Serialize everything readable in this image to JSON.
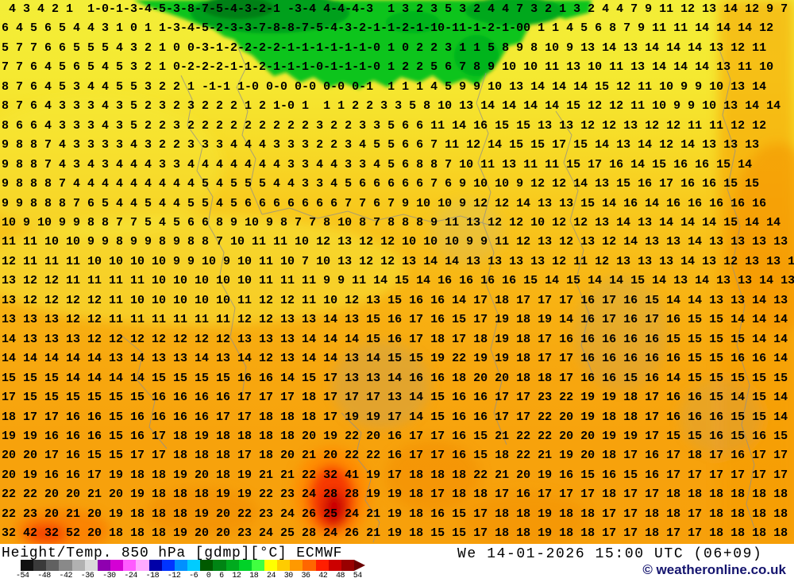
{
  "map": {
    "rows": [
      " 4 3 4 2 1  1-0-1-3-4-5-3-8-7-5-4-3-2-1 -3-4 4-4-4-3  1 3 2 3 5 3 2 4 4 7 3 2 1 3 2 4 4 7 9 11 12 13 14 12 9 7",
      "6 4 5 6 5 4 4 3 1 0 1 1-3-4-5-2-3-3-7-8-8-7-5-4-3-2-1-1-2-1-10-11-1-2-1-00 1 1 4 5 6 8 7 9 11 11 14 14 14 12",
      "5 7 7 6 6 5 5 5 4 3 2 1 0 0-3-1-2-2-2-2-1-1-1-1-1-1-0 1 0 2 2 3 1 1 5 8 9 8 10 9 13 14 13 14 14 14 13 12 11",
      "7 7 6 4 5 6 5 4 5 3 2 1 0-2-2-2-1-1-2-1-1-1-0-1-1-1-0 1 2 2 5 6 7 8 9 10 10 11 13 10 11 13 14 14 14 13 11 10",
      "8 7 6 4 5 3 4 4 5 5 3 2 2 1 -1-1 1-0 0-0 0-0 0-0 0-1  1 1 1 4 5 9 9 10 13 14 14 14 15 12 11 10 9 9 10 13 14",
      "8 7 6 4 3 3 3 4 3 5 2 3 2 3 2 2 2 1 2 1-0 1  1 1 2 2 3 3 5 8 10 13 14 14 14 14 15 12 12 11 10 9 9 10 13 14 14",
      "8 6 6 4 3 3 3 4 3 5 2 2 3 2 2 2 2 2 2 2 2 2 3 2 2 3 3 5 6 6 11 14 16 15 15 13 13 12 12 13 12 12 11 11 12 12",
      "9 8 8 7 4 3 3 3 3 4 3 2 2 3 3 3 4 4 4 3 3 3 2 2 3 4 5 5 6 6 7 11 12 14 15 15 17 15 14 13 14 12 14 13 13 13",
      "9 8 8 7 4 3 4 3 4 4 4 3 3 4 4 4 4 4 4 4 3 3 4 4 3 3 4 5 6 8 8 7 10 11 13 11 11 15 17 16 14 15 16 16 15 14",
      "9 8 8 8 7 4 4 4 4 4 4 4 4 4 5 4 5 5 5 4 4 3 3 4 5 6 6 6 6 6 7 6 9 10 10 9 12 12 14 13 15 16 17 16 16 15 15",
      "9 9 8 8 8 7 6 5 4 4 5 4 4 5 5 4 5 6 6 6 6 6 6 6 7 7 6 7 9 10 10 9 12 12 14 13 13 15 14 16 14 16 16 16 16 16",
      "10 9 10 9 9 8 8 7 7 5 4 5 6 6 8 9 10 9 8 7 7 8 10 8 7 8 8 8 9 11 13 12 12 10 12 12 13 14 13 14 14 14 15 14 14",
      "11 11 10 10 9 9 8 9 9 8 9 8 8 7 10 11 11 10 12 13 12 12 10 10 10 9 9 11 12 13 12 13 12 14 13 13 14 13 13 13 13 14 14",
      "12 11 11 11 10 10 10 10 9 9 10 9 10 11 10 7 10 13 12 12 13 14 14 13 13 13 13 12 11 12 13 13 13 14 13 12 13 13 15 15 15 14 14",
      "13 12 12 11 11 11 11 10 10 10 10 10 11 11 11 9 9 11 14 15 14 16 16 16 16 15 14 15 14 14 15 14 13 14 13 13 14 13 14 15 15 14 14",
      "13 12 12 12 12 11 10 10 10 10 10 11 12 12 11 10 12 13 15 16 16 14 17 18 17 17 17 16 17 16 15 14 14 13 13 14 13 13 14 13 14 14 14",
      "13 13 13 12 12 11 11 11 11 11 11 12 12 13 13 14 13 15 16 17 16 15 17 19 18 19 14 16 17 16 17 16 15 15 14 14 14 14 13 13 14 14 15",
      "14 13 13 13 12 12 12 12 12 12 12 13 13 13 14 14 14 15 16 17 18 17 18 19 18 17 16 16 16 16 16 15 15 15 15 14 14 14 14 14 15 15 15",
      "14 14 14 14 14 13 14 13 13 14 13 14 12 13 14 14 13 14 15 15 19 22 19 19 18 17 17 16 16 16 16 16 15 15 16 16 14 14 13 14 14 16 16",
      "15 15 15 14 14 14 14 15 15 15 15 16 16 14 15 17 13 13 14 16 16 18 20 20 18 18 17 16 16 15 16 14 15 15 15 15 15 15 16 15 15 15 15",
      "17 15 15 15 15 15 15 16 16 16 16 17 17 17 18 17 17 17 13 14 15 16 16 17 17 23 22 19 19 18 17 16 16 15 14 15 14 15 13 14 15 15 15",
      "18 17 17 16 16 15 16 16 16 16 17 17 18 18 18 17 19 19 17 14 15 16 16 17 17 22 20 19 18 18 17 16 16 16 15 15 14 15 14 15 15 16 16",
      "19 19 16 16 16 15 16 17 18 19 18 18 18 18 20 19 22 20 16 17 17 16 15 21 22 22 20 20 19 19 17 15 15 16 15 16 15 16 15 16 16 16 16",
      "20 20 17 16 15 15 17 17 18 18 18 17 18 20 21 20 22 22 16 17 17 16 15 18 22 21 19 20 18 17 16 17 18 17 16 17 17 16 16 16 16 16 16",
      "20 19 16 16 17 19 18 18 19 20 18 19 21 21 22 32 41 19 17 18 18 18 22 21 20 19 16 15 16 15 16 17 17 17 17 17 17 17 17 16 16 16 20",
      "22 22 20 20 21 20 19 18 18 18 19 19 22 23 24 28 28 19 19 18 17 18 18 17 16 17 17 17 18 17 17 18 18 18 18 18 18 17 17 18 18 18 18",
      "22 23 20 21 20 19 18 18 18 19 20 22 23 24 26 25 24 21 19 18 16 15 17 18 18 19 18 18 17 17 18 18 17 18 18 18 18 17 17 18 18 18 18",
      "32 42 32 52 20 18 18 18 19 20 20 23 24 25 28 24 26 21 19 18 15 15 17 18 18 19 18 18 17 17 18 17 17 18 18 18 18 17 17 18 18 18 17"
    ]
  },
  "legend": {
    "title": "Height/Temp. 850 hPa [gdmp][°C] ECMWF",
    "datetime": "We 14-01-2026 15:00 UTC (06+09)",
    "copyright": "© weatheronline.co.uk",
    "scale": {
      "colors": [
        "#111111",
        "#3a3a3a",
        "#616161",
        "#898989",
        "#b1b1b1",
        "#d9d9d9",
        "#8f00b0",
        "#d400d4",
        "#ff5aff",
        "#ffaaff",
        "#0000a8",
        "#0034ff",
        "#0090ff",
        "#00ccff",
        "#005a00",
        "#008414",
        "#00aa1e",
        "#00d228",
        "#40ff40",
        "#ffff00",
        "#ffcc00",
        "#ff9900",
        "#ff6600",
        "#ff1e00",
        "#cc0000",
        "#990000"
      ],
      "arrow_color": "#6b0000",
      "ticks": [
        "-54",
        "-48",
        "-42",
        "-36",
        "-30",
        "-24",
        "-18",
        "-12",
        "-6",
        "0",
        "6",
        "12",
        "18",
        "24",
        "30",
        "36",
        "42",
        "48",
        "54"
      ]
    }
  },
  "palette": {
    "cold_green": "#0cc41c",
    "warm_yellow": "#f4e832",
    "hot_orange": "#f7a30e",
    "extreme_red": "#cc0000",
    "copyright_navy": "#14146e"
  }
}
